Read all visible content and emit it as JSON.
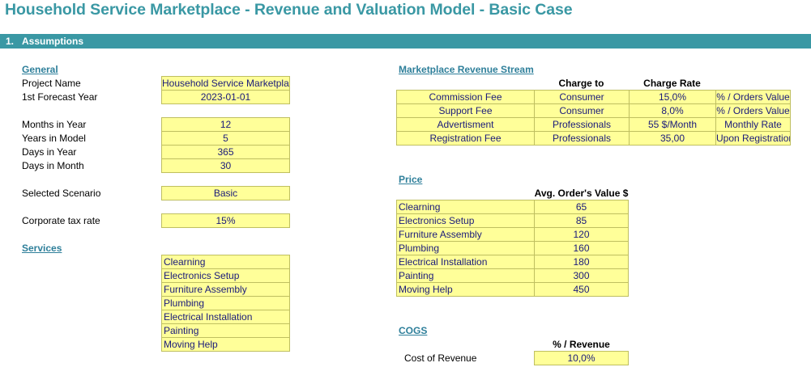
{
  "title": "Household Service Marketplace - Revenue and Valuation Model - Basic Case",
  "section": {
    "number": "1.",
    "label": "Assumptions"
  },
  "general": {
    "heading": "General",
    "rows": [
      {
        "label": "Project Name",
        "value": "Household Service Marketplace"
      },
      {
        "label": "1st Forecast Year",
        "value": "2023-01-01"
      },
      {
        "label": "Months in Year",
        "value": "12"
      },
      {
        "label": "Years in Model",
        "value": "5"
      },
      {
        "label": "Days in Year",
        "value": "365"
      },
      {
        "label": "Days in Month",
        "value": "30"
      },
      {
        "label": "Selected Scenario",
        "value": "Basic"
      },
      {
        "label": "Corporate tax rate",
        "value": "15%"
      }
    ]
  },
  "services": {
    "heading": "Services",
    "items": [
      "Clearning",
      "Electronics Setup",
      "Furniture Assembly",
      "Plumbing",
      "Electrical Installation",
      "Painting",
      "Moving Help"
    ]
  },
  "revenue_stream": {
    "heading": "Marketplace Revenue Stream",
    "col_charge_to": "Charge to",
    "col_charge_rate": "Charge Rate",
    "rows": [
      {
        "name": "Commission Fee",
        "charge_to": "Consumer",
        "rate": "15,0%",
        "unit": "% / Orders Value"
      },
      {
        "name": "Support Fee",
        "charge_to": "Consumer",
        "rate": "8,0%",
        "unit": "% / Orders Value"
      },
      {
        "name": "Advertisment",
        "charge_to": "Professionals",
        "rate": "55 $/Month",
        "unit": "Monthly Rate"
      },
      {
        "name": "Registration Fee",
        "charge_to": "Professionals",
        "rate": "35,00",
        "unit": "Upon Registration"
      }
    ]
  },
  "price": {
    "heading": "Price",
    "col_header": "Avg. Order's Value $",
    "rows": [
      {
        "name": "Clearning",
        "value": "65"
      },
      {
        "name": "Electronics Setup",
        "value": "85"
      },
      {
        "name": "Furniture Assembly",
        "value": "120"
      },
      {
        "name": "Plumbing",
        "value": "160"
      },
      {
        "name": "Electrical Installation",
        "value": "180"
      },
      {
        "name": "Painting",
        "value": "300"
      },
      {
        "name": "Moving Help",
        "value": "450"
      }
    ]
  },
  "cogs": {
    "heading": "COGS",
    "col_header": "% / Revenue",
    "label": "Cost of Revenue",
    "value": "10,0%"
  }
}
